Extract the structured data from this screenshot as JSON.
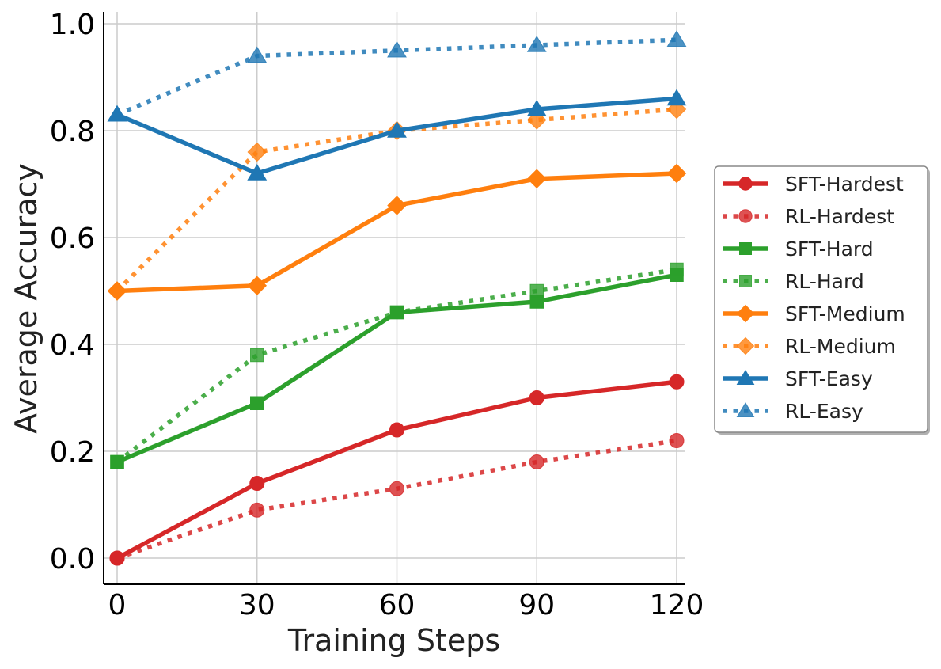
{
  "chart_data": {
    "type": "line",
    "xlabel": "Training Steps",
    "ylabel": "Average Accuracy",
    "x": [
      0,
      30,
      60,
      90,
      120
    ],
    "xticks": [
      "0",
      "30",
      "60",
      "90",
      "120"
    ],
    "yticks": [
      "0.0",
      "0.2",
      "0.4",
      "0.6",
      "0.8",
      "1.0"
    ],
    "xlim": [
      -3,
      122
    ],
    "ylim": [
      -0.05,
      1.02
    ],
    "grid": true,
    "legend_position": "right, outside plot",
    "series": [
      {
        "name": "SFT-Hardest",
        "color": "#d62728",
        "style": "solid",
        "marker": "circle",
        "values": [
          0.0,
          0.14,
          0.24,
          0.3,
          0.33
        ]
      },
      {
        "name": "RL-Hardest",
        "color": "#d62728",
        "style": "dotted",
        "marker": "circle",
        "values": [
          0.0,
          0.09,
          0.13,
          0.18,
          0.22
        ]
      },
      {
        "name": "SFT-Hard",
        "color": "#2ca02c",
        "style": "solid",
        "marker": "square",
        "values": [
          0.18,
          0.29,
          0.46,
          0.48,
          0.53
        ]
      },
      {
        "name": "RL-Hard",
        "color": "#2ca02c",
        "style": "dotted",
        "marker": "square",
        "values": [
          0.18,
          0.38,
          0.46,
          0.5,
          0.54
        ]
      },
      {
        "name": "SFT-Medium",
        "color": "#ff7f0e",
        "style": "solid",
        "marker": "diamond",
        "values": [
          0.5,
          0.51,
          0.66,
          0.71,
          0.72
        ]
      },
      {
        "name": "RL-Medium",
        "color": "#ff7f0e",
        "style": "dotted",
        "marker": "diamond",
        "values": [
          0.5,
          0.76,
          0.8,
          0.82,
          0.84
        ]
      },
      {
        "name": "SFT-Easy",
        "color": "#1f77b4",
        "style": "solid",
        "marker": "triangle",
        "values": [
          0.83,
          0.72,
          0.8,
          0.84,
          0.86
        ]
      },
      {
        "name": "RL-Easy",
        "color": "#1f77b4",
        "style": "dotted",
        "marker": "triangle",
        "values": [
          0.83,
          0.94,
          0.95,
          0.96,
          0.97
        ]
      }
    ]
  }
}
